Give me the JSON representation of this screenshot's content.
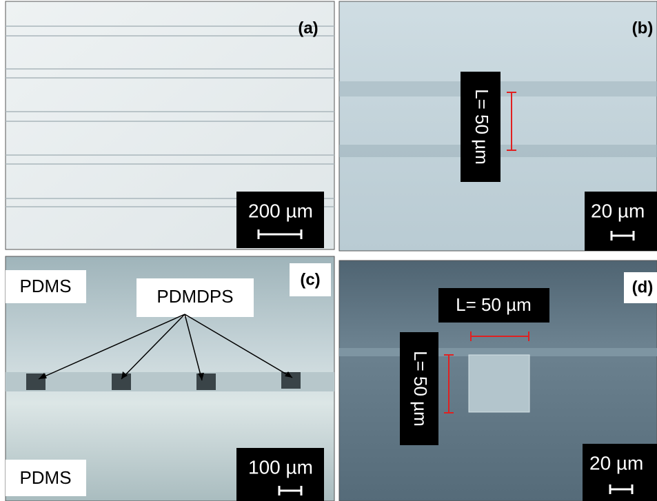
{
  "panels": [
    {
      "label": "(a)",
      "scale_bar": "200 µm"
    },
    {
      "label": "(b)",
      "scale_bar": "20 µm",
      "dimension": "L= 50 µm"
    },
    {
      "label": "(c)",
      "scale_bar": "100 µm",
      "top_material": "PDMS",
      "channel_material": "PDMDPS",
      "bottom_material": "PDMS"
    },
    {
      "label": "(d)",
      "scale_bar": "20 µm",
      "width_dimension": "L= 50 µm",
      "height_dimension": "L= 50 µm"
    }
  ]
}
